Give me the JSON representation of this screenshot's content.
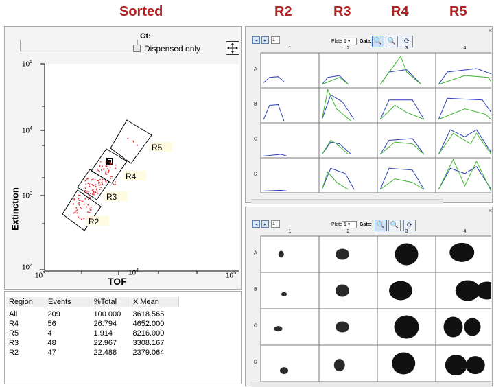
{
  "headers": {
    "sorted": "Sorted",
    "r2": "R2",
    "r3": "R3",
    "r4": "R4",
    "r5": "R5"
  },
  "colors": {
    "header": "#b22222",
    "blue_trace": "#2a3fb8",
    "green_trace": "#3cb32d",
    "dots": "#e0303a"
  },
  "gate": {
    "label": "Gt:",
    "dispensed_only_label": "Dispensed only",
    "dispensed_only_checked": false,
    "move_icon": "move-arrows-icon"
  },
  "plot": {
    "y_axis_label": "Extinction",
    "x_axis_label": "TOF",
    "y_ticks": [
      {
        "base": "10",
        "exp": "5"
      },
      {
        "base": "10",
        "exp": "4"
      },
      {
        "base": "10",
        "exp": "3"
      },
      {
        "base": "10",
        "exp": "2"
      }
    ],
    "x_ticks": [
      {
        "base": "10",
        "exp": "3"
      },
      {
        "base": "10",
        "exp": "4"
      },
      {
        "base": "10",
        "exp": "5"
      }
    ],
    "regions": [
      "R5",
      "R4",
      "R3",
      "R2"
    ]
  },
  "table": {
    "columns": [
      "Region",
      "Events",
      "%Total",
      "X Mean"
    ],
    "rows": [
      [
        "All",
        "209",
        "100.000",
        "3618.565"
      ],
      [
        "R4",
        "56",
        "26.794",
        "4652.000"
      ],
      [
        "R5",
        "4",
        "1.914",
        "8216.000"
      ],
      [
        "R3",
        "48",
        "22.967",
        "3308.167"
      ],
      [
        "R2",
        "47",
        "22.488",
        "2379.064"
      ]
    ]
  },
  "grid_top": {
    "plate_label": "Plate",
    "plate_value": "1",
    "gate_label": "Gate:",
    "box_value": "1",
    "columns": [
      "1",
      "2",
      "3",
      "4"
    ],
    "rows": [
      "A",
      "B",
      "C",
      "D"
    ],
    "icons": [
      "zoom-in-icon",
      "zoom-out-icon",
      "refresh-icon"
    ]
  },
  "grid_bottom": {
    "plate_label": "Plate",
    "plate_value": "1",
    "gate_label": "Gate:",
    "box_value": "1",
    "columns": [
      "1",
      "2",
      "3",
      "4"
    ],
    "rows": [
      "A",
      "B",
      "C",
      "D"
    ],
    "icons": [
      "zoom-in-icon",
      "zoom-out-icon",
      "refresh-icon"
    ]
  }
}
